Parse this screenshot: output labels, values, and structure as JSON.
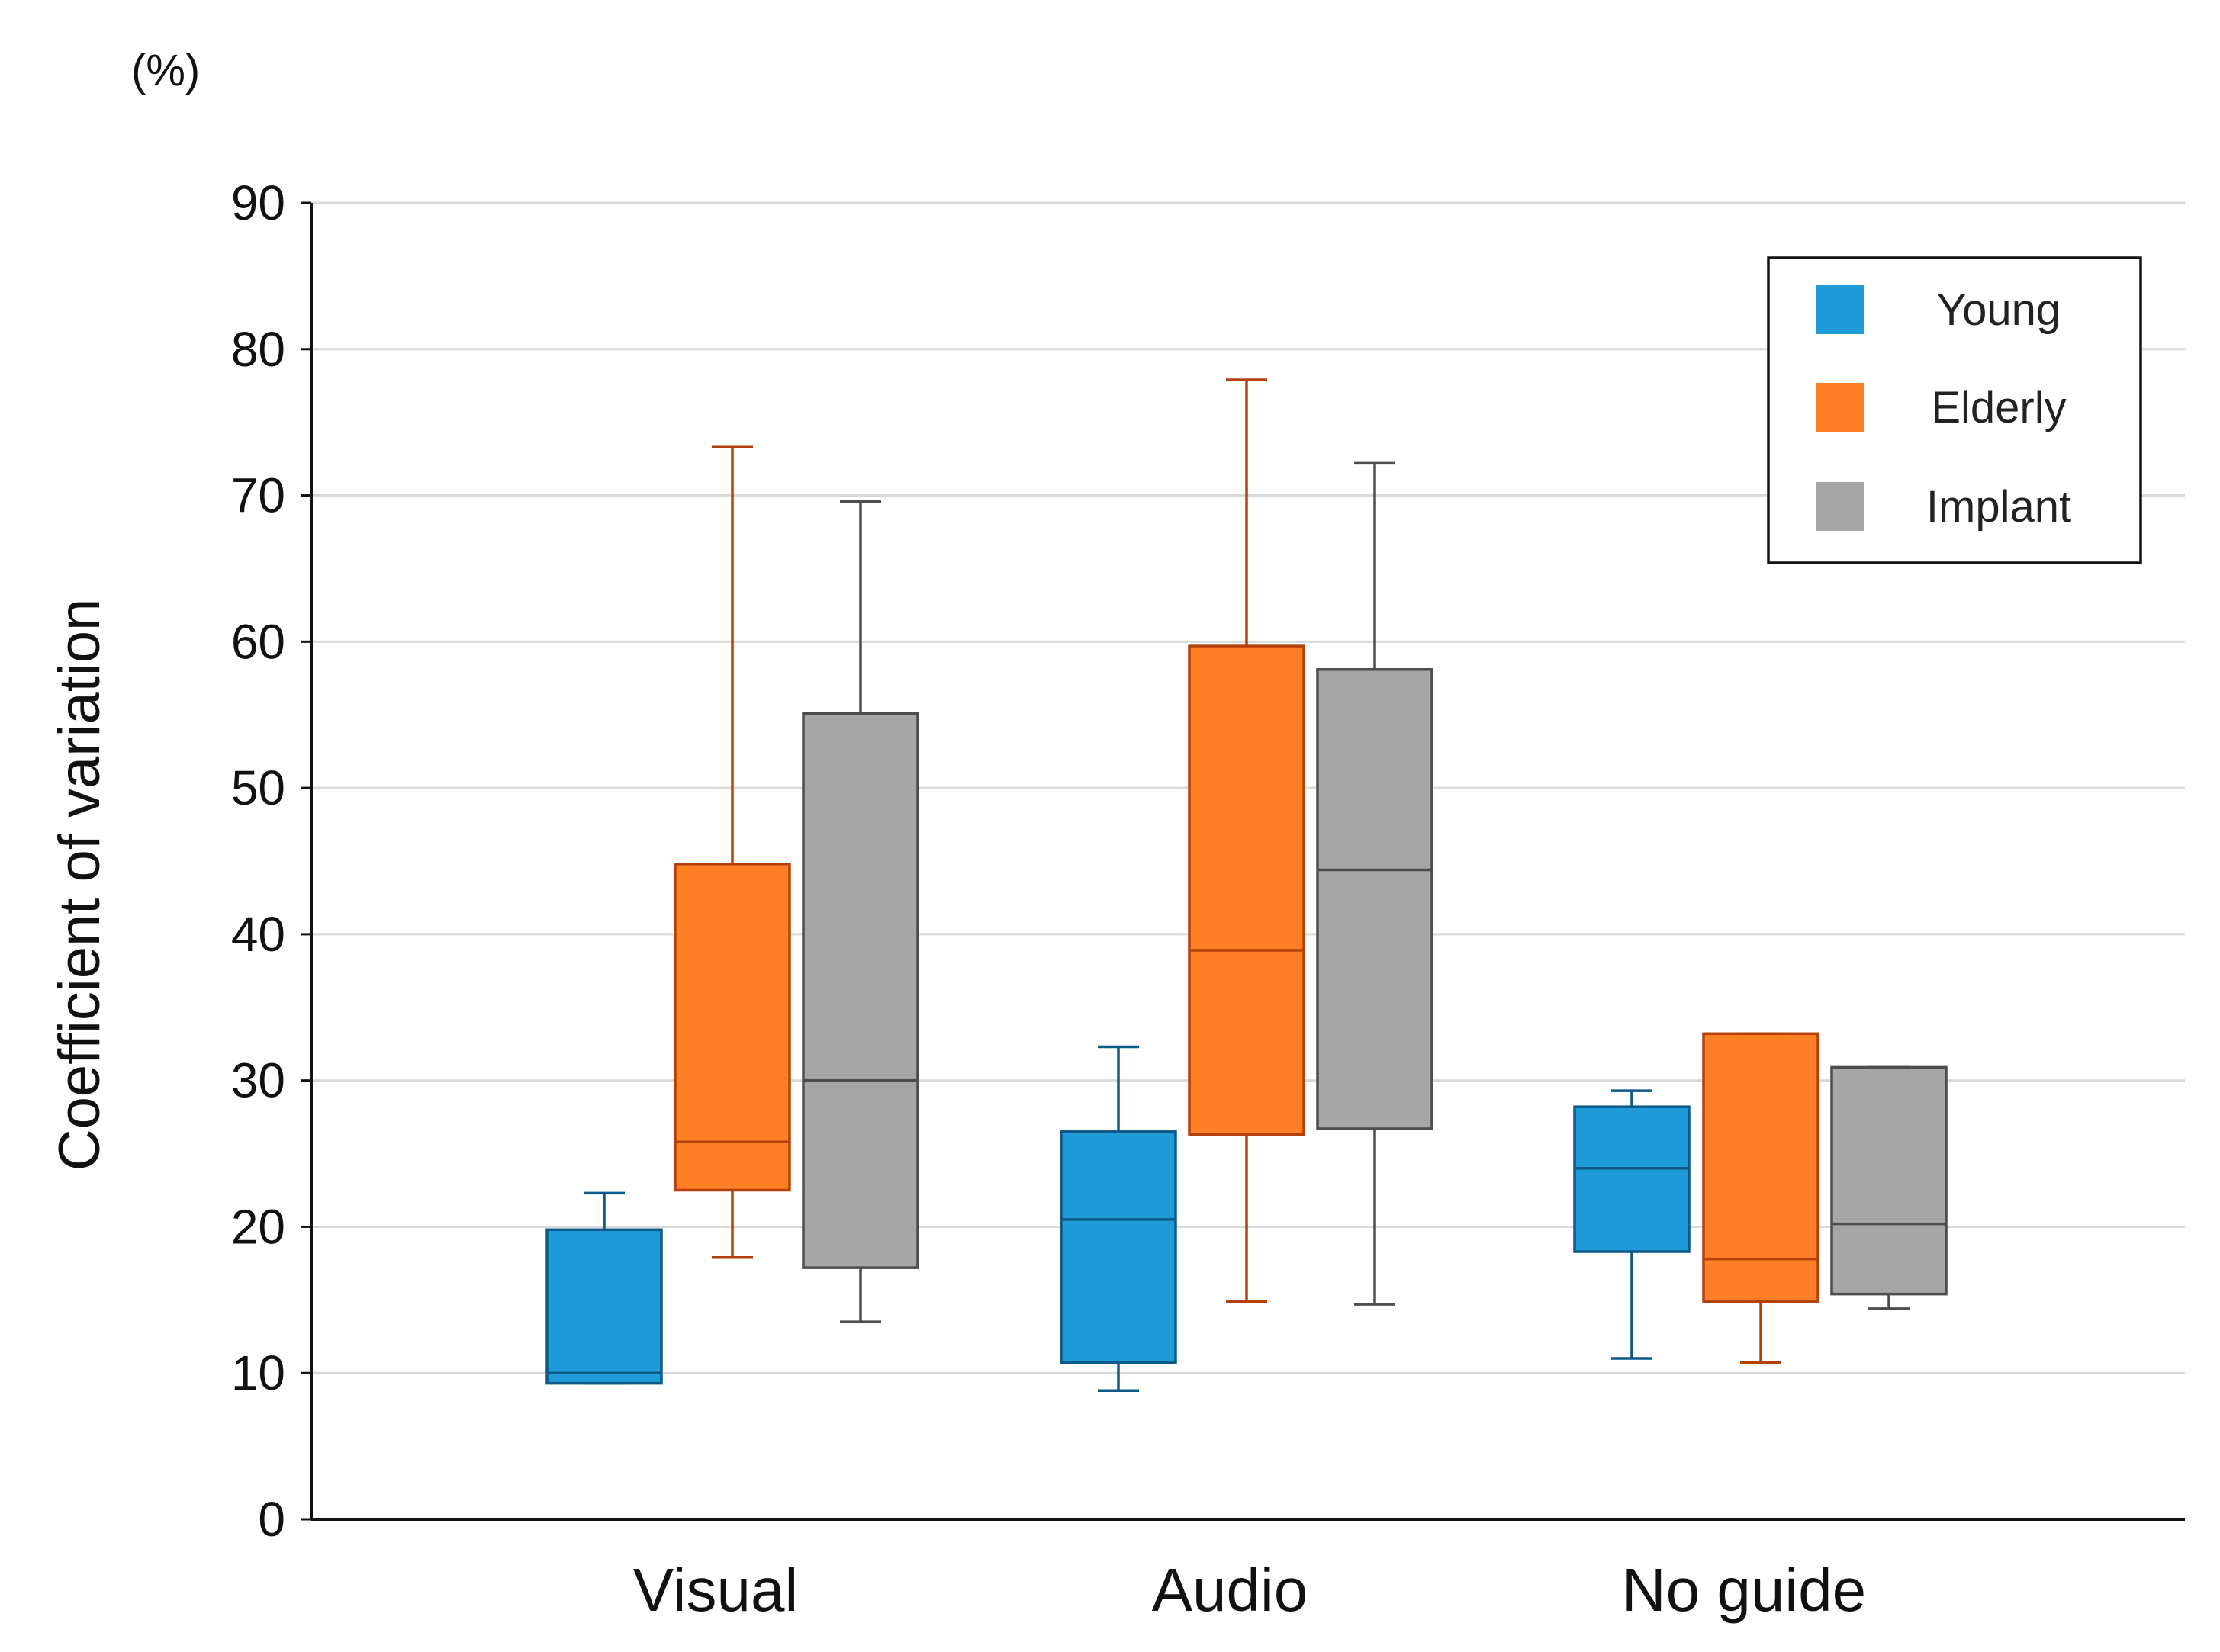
{
  "chart_data": {
    "type": "box",
    "unit_label": "(%)",
    "ylabel": "Coefficient of variation",
    "xlabel": "",
    "ylim": [
      0,
      90
    ],
    "yticks": [
      0,
      10,
      20,
      30,
      40,
      50,
      60,
      70,
      80,
      90
    ],
    "grid": true,
    "legend_position": "top-right",
    "categories": [
      "Visual",
      "Audio",
      "No guide"
    ],
    "series": [
      {
        "name": "Young",
        "fill": "#1f9bd8",
        "stroke": "#0d5a8a",
        "boxes": [
          {
            "min": 9.3,
            "q1": 9.3,
            "median": 10.0,
            "q3": 19.8,
            "max": 22.3
          },
          {
            "min": 8.8,
            "q1": 10.7,
            "median": 20.5,
            "q3": 26.5,
            "max": 32.3
          },
          {
            "min": 11.0,
            "q1": 18.3,
            "median": 24.0,
            "q3": 28.2,
            "max": 29.3
          }
        ]
      },
      {
        "name": "Elderly",
        "fill": "#ff7f27",
        "stroke": "#b5400a",
        "boxes": [
          {
            "min": 17.9,
            "q1": 22.5,
            "median": 25.8,
            "q3": 44.8,
            "max": 73.3
          },
          {
            "min": 14.9,
            "q1": 26.3,
            "median": 38.9,
            "q3": 59.7,
            "max": 77.9
          },
          {
            "min": 10.7,
            "q1": 14.9,
            "median": 17.8,
            "q3": 33.2,
            "max": 33.2
          }
        ]
      },
      {
        "name": "Implant",
        "fill": "#a6a6a6",
        "stroke": "#4d4d4d",
        "boxes": [
          {
            "min": 13.5,
            "q1": 17.2,
            "median": 30.0,
            "q3": 55.1,
            "max": 69.6
          },
          {
            "min": 14.7,
            "q1": 26.7,
            "median": 44.4,
            "q3": 58.1,
            "max": 72.2
          },
          {
            "min": 14.4,
            "q1": 15.4,
            "median": 20.2,
            "q3": 30.9,
            "max": 30.9
          }
        ]
      }
    ]
  }
}
